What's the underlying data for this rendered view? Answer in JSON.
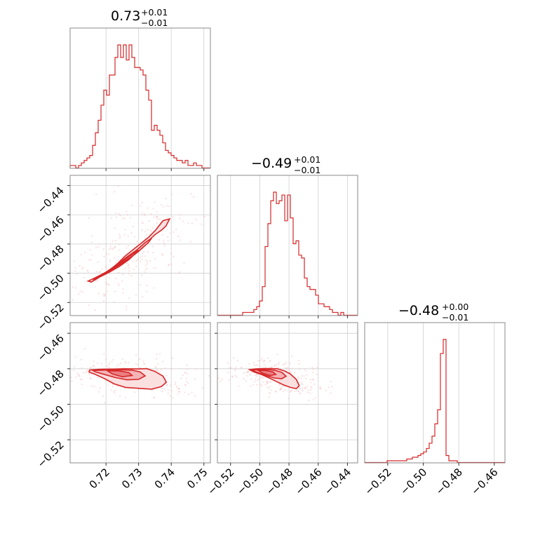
{
  "chart_data": {
    "type": "corner",
    "color": "#d62728",
    "parameters": [
      {
        "range": [
          0.709,
          0.752
        ],
        "ticks": [
          0.72,
          0.73,
          0.74,
          0.75
        ],
        "tick_labels": [
          "0.72",
          "0.73",
          "0.74",
          "0.75"
        ],
        "title": {
          "value": "0.73",
          "upper": "+0.01",
          "lower": "−0.01"
        }
      },
      {
        "range": [
          -0.529,
          -0.433
        ],
        "ticks": [
          -0.52,
          -0.5,
          -0.48,
          -0.46,
          -0.44
        ],
        "tick_labels": [
          "−0.52",
          "−0.50",
          "−0.48",
          "−0.46",
          "−0.44"
        ],
        "title": {
          "value": "−0.49",
          "upper": "+0.01",
          "lower": "−0.01"
        }
      },
      {
        "range": [
          -0.533,
          -0.454
        ],
        "ticks": [
          -0.52,
          -0.5,
          -0.48,
          -0.46
        ],
        "tick_labels": [
          "−0.52",
          "−0.50",
          "−0.48",
          "−0.46"
        ],
        "title": {
          "value": "−0.48",
          "upper": "+0.00",
          "lower": "−0.01"
        }
      }
    ],
    "histograms": [
      {
        "param": 0,
        "bin_edges": [
          0.709,
          0.752
        ],
        "counts": [
          1,
          1,
          0,
          1,
          2,
          3,
          4,
          5,
          9,
          14,
          19,
          25,
          31,
          29,
          37,
          37,
          44,
          49,
          44,
          49,
          43,
          49,
          44,
          40,
          40,
          39,
          37,
          31,
          27,
          15,
          17,
          15,
          13,
          10,
          7,
          6,
          5,
          4,
          3,
          3,
          2,
          3,
          1,
          1,
          2,
          1,
          1,
          0,
          0,
          0
        ]
      },
      {
        "param": 1,
        "bin_edges": [
          -0.529,
          -0.433
        ],
        "counts": [
          0,
          0,
          0,
          0,
          0,
          0,
          0,
          0,
          0,
          1,
          1,
          1,
          1,
          2,
          3,
          5,
          10,
          24,
          32,
          40,
          43,
          39,
          40,
          42,
          33,
          42,
          34,
          25,
          26,
          21,
          20,
          13,
          10,
          9,
          9,
          7,
          4,
          4,
          3,
          3,
          2,
          1,
          1,
          0,
          1,
          0,
          0,
          0,
          0,
          0
        ]
      },
      {
        "param": 2,
        "bin_edges": [
          -0.533,
          -0.454
        ],
        "counts": [
          0,
          0,
          0,
          0,
          0,
          0,
          0,
          0,
          1,
          1,
          1,
          1,
          1,
          1,
          1,
          2,
          2,
          3,
          3,
          4,
          5,
          6,
          8,
          11,
          15,
          22,
          30,
          62,
          70,
          4,
          1,
          1,
          1,
          0,
          0,
          0,
          0,
          0,
          0,
          0,
          0,
          0,
          0,
          0,
          0,
          0,
          0,
          0,
          0,
          0
        ]
      }
    ],
    "contours_2d": [
      {
        "x_param": 0,
        "y_param": 1,
        "levels": [
          [
            [
              0.7145,
              -0.5054
            ],
            [
              0.7165,
              -0.5033
            ],
            [
              0.7185,
              -0.501
            ],
            [
              0.721,
              -0.498
            ],
            [
              0.7235,
              -0.4935
            ],
            [
              0.726,
              -0.488
            ],
            [
              0.7285,
              -0.4835
            ],
            [
              0.7305,
              -0.48
            ],
            [
              0.733,
              -0.4755
            ],
            [
              0.7352,
              -0.4705
            ],
            [
              0.7375,
              -0.464
            ],
            [
              0.7395,
              -0.4628
            ],
            [
              0.7384,
              -0.4676
            ],
            [
              0.7372,
              -0.4702
            ],
            [
              0.735,
              -0.4736
            ],
            [
              0.7328,
              -0.4782
            ],
            [
              0.73,
              -0.4843
            ],
            [
              0.727,
              -0.4907
            ],
            [
              0.724,
              -0.4955
            ],
            [
              0.721,
              -0.4993
            ],
            [
              0.718,
              -0.5027
            ],
            [
              0.7155,
              -0.506
            ]
          ],
          [
            [
              0.716,
              -0.5044
            ],
            [
              0.719,
              -0.5008
            ],
            [
              0.7225,
              -0.4955
            ],
            [
              0.726,
              -0.4895
            ],
            [
              0.7295,
              -0.484
            ],
            [
              0.732,
              -0.479
            ],
            [
              0.734,
              -0.476
            ],
            [
              0.733,
              -0.479
            ],
            [
              0.73,
              -0.485
            ],
            [
              0.7265,
              -0.491
            ],
            [
              0.723,
              -0.496
            ],
            [
              0.7195,
              -0.5005
            ]
          ],
          [
            [
              0.7205,
              -0.4985
            ],
            [
              0.724,
              -0.4935
            ],
            [
              0.727,
              -0.4885
            ],
            [
              0.73,
              -0.4842
            ],
            [
              0.7285,
              -0.4876
            ],
            [
              0.7255,
              -0.492
            ],
            [
              0.7225,
              -0.4962
            ]
          ]
        ]
      },
      {
        "x_param": 0,
        "y_param": 2,
        "levels": [
          [
            [
              0.715,
              -0.4807
            ],
            [
              0.718,
              -0.4803
            ],
            [
              0.722,
              -0.4802
            ],
            [
              0.726,
              -0.48
            ],
            [
              0.73,
              -0.4801
            ],
            [
              0.7325,
              -0.4799
            ],
            [
              0.735,
              -0.4815
            ],
            [
              0.7375,
              -0.4842
            ],
            [
              0.7385,
              -0.4876
            ],
            [
              0.737,
              -0.49
            ],
            [
              0.734,
              -0.4915
            ],
            [
              0.73,
              -0.491
            ],
            [
              0.726,
              -0.4905
            ],
            [
              0.7225,
              -0.4885
            ],
            [
              0.7195,
              -0.4855
            ],
            [
              0.7165,
              -0.483
            ],
            [
              0.7148,
              -0.4818
            ]
          ],
          [
            [
              0.716,
              -0.481
            ],
            [
              0.72,
              -0.4807
            ],
            [
              0.724,
              -0.4806
            ],
            [
              0.728,
              -0.4808
            ],
            [
              0.7305,
              -0.4818
            ],
            [
              0.732,
              -0.484
            ],
            [
              0.73,
              -0.486
            ],
            [
              0.7265,
              -0.4862
            ],
            [
              0.723,
              -0.485
            ],
            [
              0.7195,
              -0.4832
            ],
            [
              0.7168,
              -0.4818
            ]
          ],
          [
            [
              0.7205,
              -0.4812
            ],
            [
              0.724,
              -0.4812
            ],
            [
              0.727,
              -0.4822
            ],
            [
              0.728,
              -0.4838
            ],
            [
              0.725,
              -0.4845
            ],
            [
              0.722,
              -0.483
            ]
          ]
        ]
      },
      {
        "x_param": 1,
        "y_param": 2,
        "levels": [
          [
            [
              -0.507,
              -0.4805
            ],
            [
              -0.503,
              -0.4801
            ],
            [
              -0.498,
              -0.4799
            ],
            [
              -0.493,
              -0.4799
            ],
            [
              -0.488,
              -0.48
            ],
            [
              -0.483,
              -0.4812
            ],
            [
              -0.479,
              -0.483
            ],
            [
              -0.475,
              -0.486
            ],
            [
              -0.473,
              -0.4895
            ],
            [
              -0.475,
              -0.4912
            ],
            [
              -0.479,
              -0.4905
            ],
            [
              -0.484,
              -0.489
            ],
            [
              -0.489,
              -0.487
            ],
            [
              -0.494,
              -0.485
            ],
            [
              -0.499,
              -0.4832
            ],
            [
              -0.504,
              -0.4818
            ]
          ],
          [
            [
              -0.505,
              -0.4808
            ],
            [
              -0.5,
              -0.4805
            ],
            [
              -0.495,
              -0.4805
            ],
            [
              -0.49,
              -0.4808
            ],
            [
              -0.485,
              -0.482
            ],
            [
              -0.482,
              -0.4842
            ],
            [
              -0.485,
              -0.4856
            ],
            [
              -0.49,
              -0.4852
            ],
            [
              -0.495,
              -0.484
            ],
            [
              -0.5,
              -0.4825
            ],
            [
              -0.504,
              -0.4814
            ]
          ],
          [
            [
              -0.501,
              -0.481
            ],
            [
              -0.496,
              -0.481
            ],
            [
              -0.491,
              -0.4818
            ],
            [
              -0.489,
              -0.4832
            ],
            [
              -0.493,
              -0.4838
            ],
            [
              -0.498,
              -0.4825
            ]
          ]
        ]
      }
    ]
  }
}
